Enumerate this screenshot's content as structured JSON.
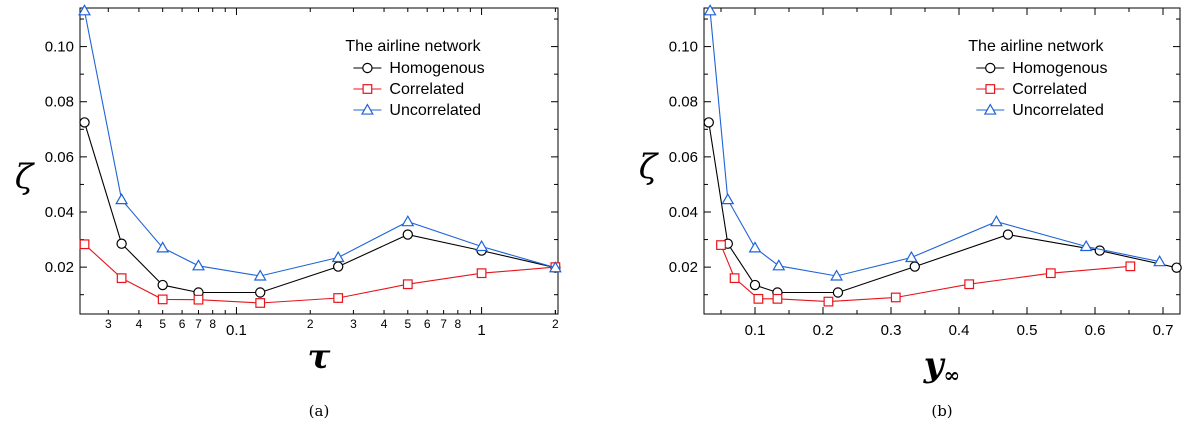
{
  "chart_data": [
    {
      "type": "line",
      "panel_caption": "(a)",
      "xlabel": "τ",
      "ylabel": "ζ",
      "xscale": "log",
      "xlim": [
        0.023,
        2.05
      ],
      "ylim": [
        0.003,
        0.114
      ],
      "grid": false,
      "legend_title": "The airline network",
      "legend_position": "top-right",
      "x_tick_labels": [
        {
          "value": 0.03,
          "label": "3",
          "minor": true
        },
        {
          "value": 0.04,
          "label": "4",
          "minor": true
        },
        {
          "value": 0.05,
          "label": "5",
          "minor": true
        },
        {
          "value": 0.06,
          "label": "6",
          "minor": true
        },
        {
          "value": 0.07,
          "label": "7",
          "minor": true
        },
        {
          "value": 0.08,
          "label": "8",
          "minor": true
        },
        {
          "value": 0.1,
          "label": "0.1",
          "minor": false
        },
        {
          "value": 0.2,
          "label": "2",
          "minor": true
        },
        {
          "value": 0.3,
          "label": "3",
          "minor": true
        },
        {
          "value": 0.4,
          "label": "4",
          "minor": true
        },
        {
          "value": 0.5,
          "label": "5",
          "minor": true
        },
        {
          "value": 0.6,
          "label": "6",
          "minor": true
        },
        {
          "value": 0.7,
          "label": "7",
          "minor": true
        },
        {
          "value": 0.8,
          "label": "8",
          "minor": true
        },
        {
          "value": 1,
          "label": "1",
          "minor": false
        },
        {
          "value": 2,
          "label": "2",
          "minor": true
        }
      ],
      "y_tick_labels": [
        {
          "value": 0.02,
          "label": "0.02"
        },
        {
          "value": 0.04,
          "label": "0.04"
        },
        {
          "value": 0.06,
          "label": "0.06"
        },
        {
          "value": 0.08,
          "label": "0.08"
        },
        {
          "value": 0.1,
          "label": "0.10"
        }
      ],
      "series": [
        {
          "name": "Homogenous",
          "color": "#000000",
          "marker": "circle",
          "x": [
            0.024,
            0.034,
            0.05,
            0.07,
            0.125,
            0.26,
            0.5,
            1.0,
            2.0
          ],
          "y": [
            0.0725,
            0.0285,
            0.0135,
            0.0108,
            0.0108,
            0.0202,
            0.0318,
            0.026,
            0.0198
          ]
        },
        {
          "name": "Correlated",
          "color": "#e8141c",
          "marker": "square",
          "x": [
            0.024,
            0.034,
            0.05,
            0.07,
            0.125,
            0.26,
            0.5,
            1.0,
            2.0
          ],
          "y": [
            0.0283,
            0.016,
            0.0083,
            0.0082,
            0.007,
            0.0088,
            0.0138,
            0.0178,
            0.02
          ]
        },
        {
          "name": "Uncorrelated",
          "color": "#1f63d8",
          "marker": "triangle",
          "x": [
            0.024,
            0.034,
            0.05,
            0.07,
            0.125,
            0.26,
            0.5,
            1.0,
            2.0
          ],
          "y": [
            0.113,
            0.0445,
            0.027,
            0.0205,
            0.0168,
            0.0235,
            0.0365,
            0.0275,
            0.0198
          ]
        }
      ]
    },
    {
      "type": "line",
      "panel_caption": "(b)",
      "xlabel": "y∞",
      "ylabel": "ζ",
      "xscale": "linear",
      "xlim": [
        0.025,
        0.725
      ],
      "ylim": [
        0.003,
        0.114
      ],
      "grid": false,
      "legend_title": "The airline network",
      "legend_position": "top-right",
      "x_tick_labels": [
        {
          "value": 0.1,
          "label": "0.1"
        },
        {
          "value": 0.2,
          "label": "0.2"
        },
        {
          "value": 0.3,
          "label": "0.3"
        },
        {
          "value": 0.4,
          "label": "0.4"
        },
        {
          "value": 0.5,
          "label": "0.5"
        },
        {
          "value": 0.6,
          "label": "0.6"
        },
        {
          "value": 0.7,
          "label": "0.7"
        }
      ],
      "y_tick_labels": [
        {
          "value": 0.02,
          "label": "0.02"
        },
        {
          "value": 0.04,
          "label": "0.04"
        },
        {
          "value": 0.06,
          "label": "0.06"
        },
        {
          "value": 0.08,
          "label": "0.08"
        },
        {
          "value": 0.1,
          "label": "0.10"
        }
      ],
      "series": [
        {
          "name": "Homogenous",
          "color": "#000000",
          "marker": "circle",
          "x": [
            0.032,
            0.06,
            0.1,
            0.133,
            0.222,
            0.335,
            0.472,
            0.607,
            0.72
          ],
          "y": [
            0.0725,
            0.0285,
            0.0135,
            0.0108,
            0.0108,
            0.0202,
            0.0318,
            0.026,
            0.0198
          ]
        },
        {
          "name": "Correlated",
          "color": "#e8141c",
          "marker": "square",
          "x": [
            0.05,
            0.07,
            0.105,
            0.133,
            0.208,
            0.307,
            0.415,
            0.535,
            0.652
          ],
          "y": [
            0.028,
            0.016,
            0.0085,
            0.0085,
            0.0075,
            0.009,
            0.0138,
            0.0178,
            0.0203
          ]
        },
        {
          "name": "Uncorrelated",
          "color": "#1f63d8",
          "marker": "triangle",
          "x": [
            0.034,
            0.06,
            0.1,
            0.135,
            0.22,
            0.33,
            0.455,
            0.587,
            0.695
          ],
          "y": [
            0.113,
            0.0445,
            0.027,
            0.0205,
            0.0168,
            0.0235,
            0.0365,
            0.0275,
            0.022
          ]
        }
      ]
    }
  ]
}
